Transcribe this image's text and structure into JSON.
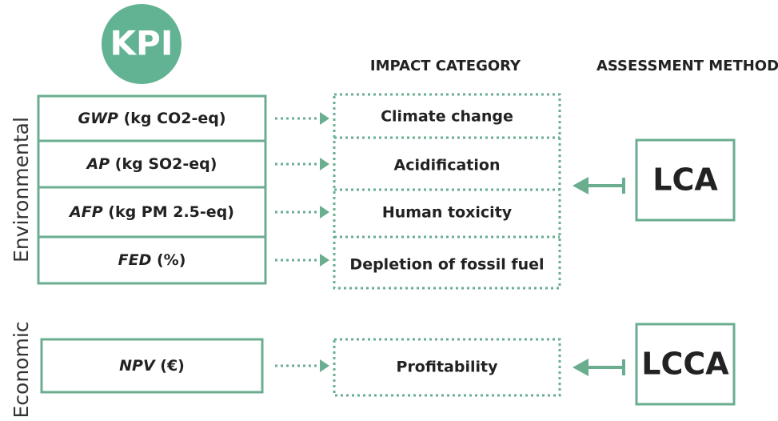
{
  "badge": "KPI",
  "headers": {
    "impact": "IMPACT CATEGORY",
    "method": "ASSESSMENT METHOD"
  },
  "sections": [
    {
      "label": "Environmental",
      "method": "LCA",
      "rows": [
        {
          "kpi": "GWP",
          "unit": "(kg CO2-eq)",
          "impact": "Climate change"
        },
        {
          "kpi": "AP",
          "unit": "(kg SO2-eq)",
          "impact": "Acidification"
        },
        {
          "kpi": "AFP",
          "unit": "(kg PM 2.5-eq)",
          "impact": "Human toxicity"
        },
        {
          "kpi": "FED",
          "unit": "(%)",
          "impact": "Depletion of fossil fuel"
        }
      ]
    },
    {
      "label": "Economic",
      "method": "LCCA",
      "rows": [
        {
          "kpi": "NPV",
          "unit": "(€)",
          "impact": "Profitability"
        }
      ]
    }
  ]
}
